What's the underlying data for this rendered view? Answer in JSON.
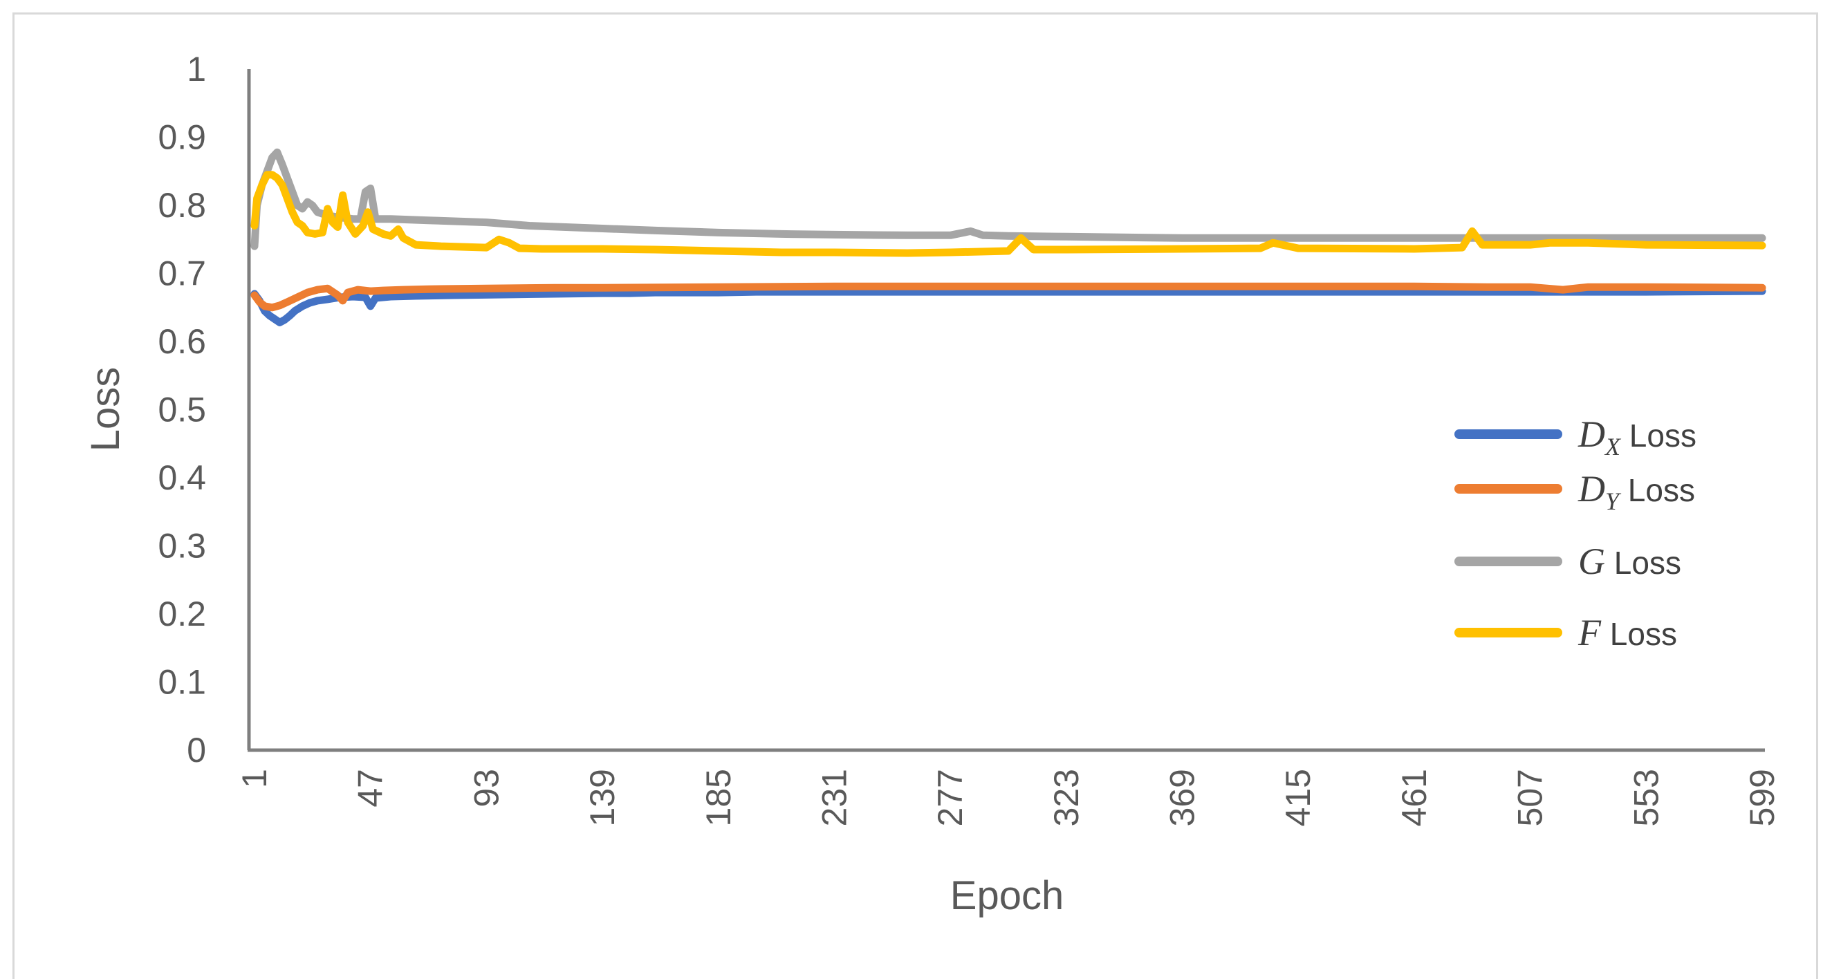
{
  "chart_data": {
    "type": "line",
    "xlabel": "Epoch",
    "ylabel": "Loss",
    "ylim": [
      0,
      1
    ],
    "xlim": [
      1,
      599
    ],
    "y_ticks": [
      "0",
      "0.1",
      "0.2",
      "0.3",
      "0.4",
      "0.5",
      "0.6",
      "0.7",
      "0.8",
      "0.9",
      "1"
    ],
    "x_ticks": [
      "1",
      "47",
      "93",
      "139",
      "185",
      "231",
      "277",
      "323",
      "369",
      "415",
      "461",
      "507",
      "553",
      "599"
    ],
    "grid": false,
    "legend_position": "right",
    "series": [
      {
        "name": "D_X Loss",
        "legend_symbol": "D",
        "legend_subscript": "X",
        "legend_suffix": " Loss",
        "color": "#4472c4",
        "points": [
          [
            1,
            0.67
          ],
          [
            3,
            0.66
          ],
          [
            5,
            0.645
          ],
          [
            7,
            0.638
          ],
          [
            9,
            0.633
          ],
          [
            11,
            0.628
          ],
          [
            13,
            0.632
          ],
          [
            15,
            0.638
          ],
          [
            17,
            0.645
          ],
          [
            20,
            0.652
          ],
          [
            23,
            0.657
          ],
          [
            26,
            0.66
          ],
          [
            30,
            0.662
          ],
          [
            35,
            0.665
          ],
          [
            40,
            0.666
          ],
          [
            45,
            0.665
          ],
          [
            47,
            0.652
          ],
          [
            49,
            0.664
          ],
          [
            55,
            0.666
          ],
          [
            65,
            0.667
          ],
          [
            80,
            0.668
          ],
          [
            100,
            0.669
          ],
          [
            120,
            0.67
          ],
          [
            139,
            0.671
          ],
          [
            150,
            0.671
          ],
          [
            160,
            0.672
          ],
          [
            185,
            0.672
          ],
          [
            200,
            0.673
          ],
          [
            231,
            0.673
          ],
          [
            277,
            0.673
          ],
          [
            300,
            0.673
          ],
          [
            323,
            0.673
          ],
          [
            369,
            0.673
          ],
          [
            415,
            0.673
          ],
          [
            461,
            0.673
          ],
          [
            507,
            0.673
          ],
          [
            553,
            0.673
          ],
          [
            599,
            0.674
          ]
        ]
      },
      {
        "name": "D_Y Loss",
        "legend_symbol": "D",
        "legend_subscript": "Y",
        "legend_suffix": " Loss",
        "color": "#ed7d31",
        "points": [
          [
            1,
            0.668
          ],
          [
            3,
            0.658
          ],
          [
            5,
            0.652
          ],
          [
            8,
            0.65
          ],
          [
            11,
            0.653
          ],
          [
            14,
            0.658
          ],
          [
            18,
            0.665
          ],
          [
            22,
            0.672
          ],
          [
            26,
            0.676
          ],
          [
            30,
            0.678
          ],
          [
            34,
            0.668
          ],
          [
            36,
            0.66
          ],
          [
            38,
            0.672
          ],
          [
            42,
            0.676
          ],
          [
            47,
            0.674
          ],
          [
            52,
            0.675
          ],
          [
            60,
            0.676
          ],
          [
            70,
            0.677
          ],
          [
            93,
            0.678
          ],
          [
            120,
            0.679
          ],
          [
            139,
            0.679
          ],
          [
            185,
            0.68
          ],
          [
            231,
            0.681
          ],
          [
            277,
            0.681
          ],
          [
            323,
            0.681
          ],
          [
            369,
            0.681
          ],
          [
            415,
            0.681
          ],
          [
            461,
            0.681
          ],
          [
            490,
            0.68
          ],
          [
            507,
            0.68
          ],
          [
            520,
            0.676
          ],
          [
            530,
            0.68
          ],
          [
            553,
            0.68
          ],
          [
            599,
            0.679
          ]
        ]
      },
      {
        "name": "G Loss",
        "legend_symbol": "G",
        "legend_subscript": "",
        "legend_suffix": " Loss",
        "color": "#a5a5a5",
        "points": [
          [
            1,
            0.74
          ],
          [
            2,
            0.8
          ],
          [
            4,
            0.83
          ],
          [
            6,
            0.85
          ],
          [
            8,
            0.87
          ],
          [
            10,
            0.878
          ],
          [
            12,
            0.86
          ],
          [
            14,
            0.84
          ],
          [
            16,
            0.82
          ],
          [
            18,
            0.8
          ],
          [
            20,
            0.795
          ],
          [
            22,
            0.805
          ],
          [
            24,
            0.8
          ],
          [
            26,
            0.79
          ],
          [
            30,
            0.785
          ],
          [
            35,
            0.782
          ],
          [
            40,
            0.78
          ],
          [
            43,
            0.78
          ],
          [
            45,
            0.82
          ],
          [
            47,
            0.825
          ],
          [
            49,
            0.78
          ],
          [
            55,
            0.78
          ],
          [
            70,
            0.778
          ],
          [
            93,
            0.775
          ],
          [
            110,
            0.77
          ],
          [
            139,
            0.766
          ],
          [
            160,
            0.763
          ],
          [
            185,
            0.76
          ],
          [
            210,
            0.758
          ],
          [
            231,
            0.757
          ],
          [
            260,
            0.756
          ],
          [
            277,
            0.756
          ],
          [
            285,
            0.762
          ],
          [
            290,
            0.756
          ],
          [
            300,
            0.755
          ],
          [
            323,
            0.754
          ],
          [
            369,
            0.752
          ],
          [
            415,
            0.752
          ],
          [
            461,
            0.752
          ],
          [
            507,
            0.752
          ],
          [
            553,
            0.752
          ],
          [
            599,
            0.752
          ]
        ]
      },
      {
        "name": "F Loss",
        "legend_symbol": "F",
        "legend_subscript": "",
        "legend_suffix": " Loss",
        "color": "#ffc000",
        "points": [
          [
            1,
            0.77
          ],
          [
            2,
            0.81
          ],
          [
            4,
            0.83
          ],
          [
            6,
            0.845
          ],
          [
            8,
            0.845
          ],
          [
            10,
            0.84
          ],
          [
            12,
            0.83
          ],
          [
            14,
            0.81
          ],
          [
            16,
            0.79
          ],
          [
            18,
            0.775
          ],
          [
            20,
            0.77
          ],
          [
            22,
            0.76
          ],
          [
            25,
            0.758
          ],
          [
            28,
            0.76
          ],
          [
            30,
            0.795
          ],
          [
            32,
            0.775
          ],
          [
            34,
            0.768
          ],
          [
            36,
            0.815
          ],
          [
            38,
            0.775
          ],
          [
            41,
            0.758
          ],
          [
            44,
            0.77
          ],
          [
            46,
            0.79
          ],
          [
            48,
            0.765
          ],
          [
            52,
            0.758
          ],
          [
            55,
            0.755
          ],
          [
            58,
            0.765
          ],
          [
            60,
            0.752
          ],
          [
            65,
            0.742
          ],
          [
            75,
            0.74
          ],
          [
            93,
            0.738
          ],
          [
            98,
            0.75
          ],
          [
            102,
            0.745
          ],
          [
            106,
            0.737
          ],
          [
            115,
            0.736
          ],
          [
            139,
            0.736
          ],
          [
            160,
            0.735
          ],
          [
            185,
            0.733
          ],
          [
            210,
            0.731
          ],
          [
            231,
            0.731
          ],
          [
            260,
            0.73
          ],
          [
            277,
            0.731
          ],
          [
            300,
            0.733
          ],
          [
            305,
            0.752
          ],
          [
            310,
            0.735
          ],
          [
            323,
            0.735
          ],
          [
            369,
            0.736
          ],
          [
            400,
            0.737
          ],
          [
            405,
            0.745
          ],
          [
            415,
            0.737
          ],
          [
            461,
            0.736
          ],
          [
            480,
            0.738
          ],
          [
            484,
            0.762
          ],
          [
            488,
            0.742
          ],
          [
            507,
            0.742
          ],
          [
            515,
            0.745
          ],
          [
            530,
            0.745
          ],
          [
            553,
            0.742
          ],
          [
            599,
            0.741
          ]
        ]
      }
    ]
  }
}
